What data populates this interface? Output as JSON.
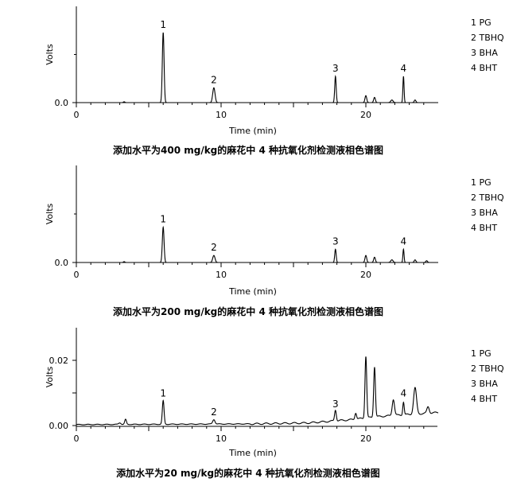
{
  "chart_data": [
    {
      "type": "line",
      "title": "添加水平为400 mg/kg的麻花中 4 种抗氧化剂检测液相色谱图",
      "xlabel": "Time (min)",
      "ylabel": "Volts",
      "xlim": [
        0,
        25
      ],
      "ylim": [
        -0.001,
        0.11
      ],
      "x_ticks": [
        0,
        10,
        20
      ],
      "y_ticks": [
        0.0
      ],
      "y_tick_labels": [
        "0.0"
      ],
      "legend": [
        "1 PG",
        "2 TBHQ",
        "3 BHA",
        "4 BHT"
      ],
      "legend_position": "right",
      "baseline": 0.0,
      "peak_labels": [
        {
          "label": "1",
          "x": 6.0,
          "y": 0.08
        },
        {
          "label": "2",
          "x": 9.5,
          "y": 0.017
        },
        {
          "label": "3",
          "x": 17.9,
          "y": 0.03
        },
        {
          "label": "4",
          "x": 22.6,
          "y": 0.03
        }
      ],
      "peaks": [
        {
          "x": 3.3,
          "height": 0.001,
          "width": 0.05
        },
        {
          "x": 6.0,
          "height": 0.08,
          "width": 0.06
        },
        {
          "x": 9.5,
          "height": 0.017,
          "width": 0.08
        },
        {
          "x": 17.9,
          "height": 0.03,
          "width": 0.05
        },
        {
          "x": 20.0,
          "height": 0.008,
          "width": 0.06
        },
        {
          "x": 20.6,
          "height": 0.006,
          "width": 0.06
        },
        {
          "x": 21.8,
          "height": 0.003,
          "width": 0.08
        },
        {
          "x": 22.6,
          "height": 0.03,
          "width": 0.04
        },
        {
          "x": 23.4,
          "height": 0.003,
          "width": 0.06
        }
      ]
    },
    {
      "type": "line",
      "title": "添加水平为200 mg/kg的麻花中 4 种抗氧化剂检测液相色谱图",
      "xlabel": "Time (min)",
      "ylabel": "Volts",
      "xlim": [
        0,
        25
      ],
      "ylim": [
        -0.001,
        0.11
      ],
      "x_ticks": [
        0,
        10,
        20
      ],
      "y_ticks": [
        0.0
      ],
      "y_tick_labels": [
        "0.0"
      ],
      "legend": [
        "1 PG",
        "2 TBHQ",
        "3 BHA",
        "4 BHT"
      ],
      "legend_position": "right",
      "baseline": 0.0,
      "peak_labels": [
        {
          "label": "1",
          "x": 6.0,
          "y": 0.04
        },
        {
          "label": "2",
          "x": 9.5,
          "y": 0.008
        },
        {
          "label": "3",
          "x": 17.9,
          "y": 0.015
        },
        {
          "label": "4",
          "x": 22.6,
          "y": 0.015
        }
      ],
      "peaks": [
        {
          "x": 3.3,
          "height": 0.001,
          "width": 0.05
        },
        {
          "x": 6.0,
          "height": 0.04,
          "width": 0.06
        },
        {
          "x": 9.5,
          "height": 0.008,
          "width": 0.08
        },
        {
          "x": 17.9,
          "height": 0.015,
          "width": 0.05
        },
        {
          "x": 20.0,
          "height": 0.008,
          "width": 0.06
        },
        {
          "x": 20.6,
          "height": 0.006,
          "width": 0.06
        },
        {
          "x": 21.8,
          "height": 0.003,
          "width": 0.08
        },
        {
          "x": 22.6,
          "height": 0.015,
          "width": 0.04
        },
        {
          "x": 23.4,
          "height": 0.003,
          "width": 0.06
        },
        {
          "x": 24.2,
          "height": 0.002,
          "width": 0.06
        }
      ]
    },
    {
      "type": "line",
      "title": "添加水平为20 mg/kg的麻花中 4 种抗氧化剂检测液相色谱图",
      "xlabel": "Time (min)",
      "ylabel": "Volts",
      "xlim": [
        0,
        25
      ],
      "ylim": [
        -0.001,
        0.03
      ],
      "x_ticks": [
        0,
        10,
        20
      ],
      "y_ticks": [
        0.0,
        0.01,
        0.02
      ],
      "y_tick_labels": [
        "0.00",
        "",
        "0.02"
      ],
      "legend": [
        "1 PG",
        "2 TBHQ",
        "3 BHA",
        "4 BHT"
      ],
      "legend_position": "right",
      "baseline": 0.0003,
      "peak_labels": [
        {
          "label": "1",
          "x": 6.0,
          "y": 0.0075
        },
        {
          "label": "2",
          "x": 9.5,
          "y": 0.0017
        },
        {
          "label": "3",
          "x": 17.9,
          "y": 0.0042
        },
        {
          "label": "4",
          "x": 22.6,
          "y": 0.0075
        }
      ],
      "peaks": [
        {
          "x": 3.0,
          "height": 0.0005,
          "width": 0.08
        },
        {
          "x": 3.4,
          "height": 0.0015,
          "width": 0.06
        },
        {
          "x": 6.0,
          "height": 0.0072,
          "width": 0.06
        },
        {
          "x": 9.5,
          "height": 0.0014,
          "width": 0.08
        },
        {
          "x": 17.9,
          "height": 0.0034,
          "width": 0.06
        },
        {
          "x": 19.3,
          "height": 0.002,
          "width": 0.06
        },
        {
          "x": 20.0,
          "height": 0.019,
          "width": 0.06
        },
        {
          "x": 20.6,
          "height": 0.0155,
          "width": 0.06
        },
        {
          "x": 21.9,
          "height": 0.005,
          "width": 0.08
        },
        {
          "x": 22.6,
          "height": 0.004,
          "width": 0.05
        },
        {
          "x": 23.4,
          "height": 0.008,
          "width": 0.1
        },
        {
          "x": 24.3,
          "height": 0.002,
          "width": 0.08
        }
      ],
      "drift": [
        {
          "x": 0,
          "y": 0.0003
        },
        {
          "x": 12,
          "y": 0.0005
        },
        {
          "x": 16,
          "y": 0.0008
        },
        {
          "x": 19,
          "y": 0.0018
        },
        {
          "x": 21,
          "y": 0.0028
        },
        {
          "x": 25,
          "y": 0.004
        }
      ]
    }
  ]
}
